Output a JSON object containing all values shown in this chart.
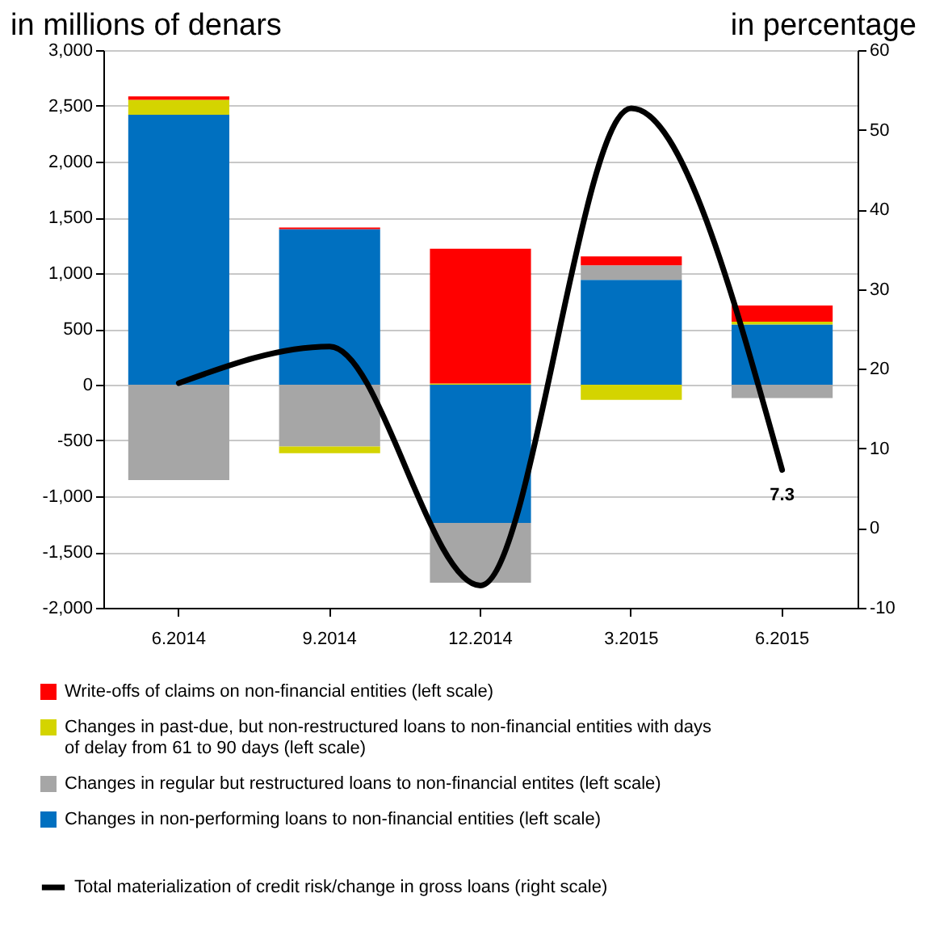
{
  "chart_data": {
    "type": "bar",
    "stacked": true,
    "ylabel": "in millions of denars",
    "y2label": "in percentage",
    "categories": [
      "6.2014",
      "9.2014",
      "12.2014",
      "3.2015",
      "6.2015"
    ],
    "series": [
      {
        "name": "Changes in non-performing loans to non-financial entities (left scale)",
        "color": "#0070c0",
        "values": [
          2420,
          1395,
          -1240,
          940,
          540
        ]
      },
      {
        "name": "Changes in regular but restructured loans to non-financial entites (left scale)",
        "color": "#a6a6a6",
        "values": [
          -855,
          -555,
          -535,
          130,
          -120
        ]
      },
      {
        "name": "Changes in past-due, but non-restructured loans to non-financial entities with days of delay from 61 to 90 days (left scale)",
        "color": "#d4d400",
        "values": [
          135,
          -60,
          10,
          -135,
          25
        ]
      },
      {
        "name": "Write-offs of claims on non-financial entities (left scale)",
        "color": "#ff0000",
        "values": [
          30,
          15,
          1210,
          80,
          145
        ]
      },
      {
        "name": "Total materialization of credit risk/change in gross loans (right scale)",
        "type": "line",
        "axis": "y2",
        "color": "#000000",
        "values": [
          18.2,
          22.8,
          -7.2,
          52.7,
          7.3
        ],
        "value_labels": [
          null,
          null,
          null,
          null,
          "7.3"
        ]
      }
    ],
    "ylim": [
      -2000,
      3000
    ],
    "yticks": [
      {
        "value": -2000,
        "label": "-2,000"
      },
      {
        "value": -1500,
        "label": "-1,500"
      },
      {
        "value": -1000,
        "label": "-1,000"
      },
      -500,
      0,
      500,
      {
        "value": 1000,
        "label": "1,000"
      },
      {
        "value": 1500,
        "label": "1,500"
      },
      {
        "value": 2000,
        "label": "2,000"
      },
      {
        "value": 2500,
        "label": "2,500"
      },
      {
        "value": 3000,
        "label": "3,000"
      }
    ],
    "y2lim": [
      -10,
      60
    ],
    "y2ticks": [
      -10,
      0,
      10,
      20,
      30,
      40,
      50,
      60
    ],
    "grid": "y",
    "legend": "bottom",
    "line_style": "solid",
    "marker": "none"
  }
}
